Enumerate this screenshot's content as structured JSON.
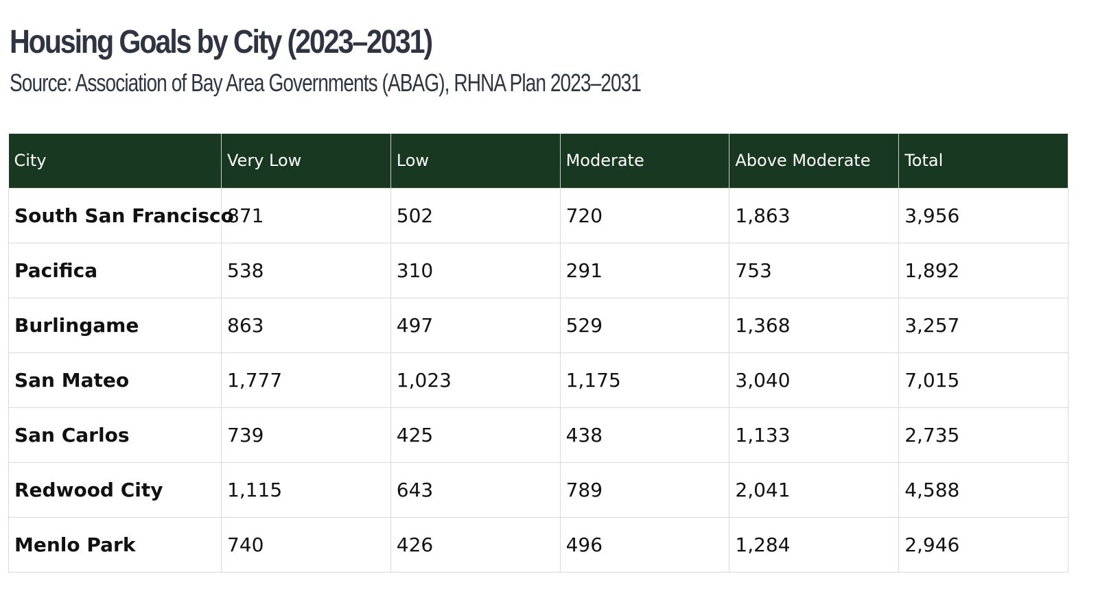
{
  "title": "Housing Goals by City (2023–2031)",
  "subtitle": "Source: Association of Bay Area Governments (ABAG), RHNA Plan 2023–2031",
  "colors": {
    "header_bg": "#183821",
    "header_text": "#ffffff",
    "title_text": "#2e3442",
    "grid": "#d9d9d9"
  },
  "chart_data": {
    "type": "table",
    "title": "Housing Goals by City (2023–2031)",
    "subtitle": "Source: Association of Bay Area Governments (ABAG), RHNA Plan 2023–2031",
    "columns": [
      "City",
      "Very Low",
      "Low",
      "Moderate",
      "Above Moderate",
      "Total"
    ],
    "rows": [
      [
        "South San Francisco",
        "871",
        "502",
        "720",
        "1,863",
        "3,956"
      ],
      [
        "Pacifica",
        "538",
        "310",
        "291",
        "753",
        "1,892"
      ],
      [
        "Burlingame",
        "863",
        "497",
        "529",
        "1,368",
        "3,257"
      ],
      [
        "San Mateo",
        "1,777",
        "1,023",
        "1,175",
        "3,040",
        "7,015"
      ],
      [
        "San Carlos",
        "739",
        "425",
        "438",
        "1,133",
        "2,735"
      ],
      [
        "Redwood City",
        "1,115",
        "643",
        "789",
        "2,041",
        "4,588"
      ],
      [
        "Menlo Park",
        "740",
        "426",
        "496",
        "1,284",
        "2,946"
      ]
    ]
  }
}
